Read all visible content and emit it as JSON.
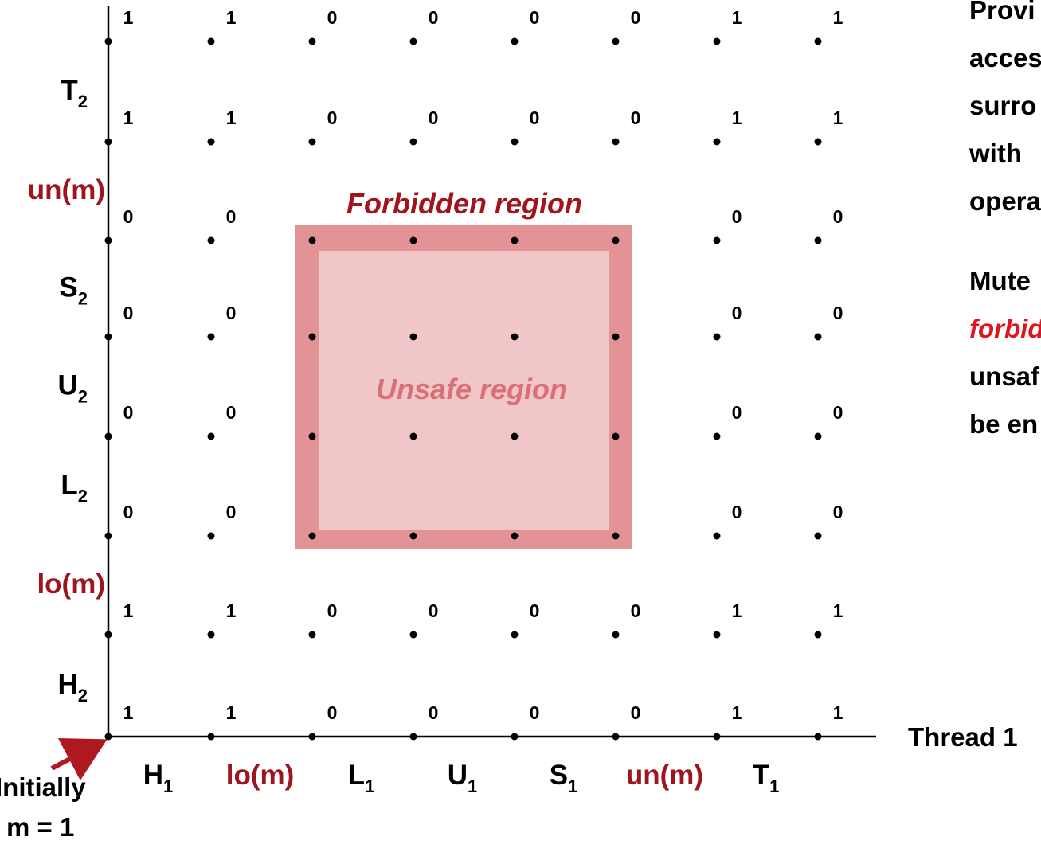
{
  "initial": {
    "line1": "Initially",
    "line2": "m = 1"
  },
  "x_axis": {
    "name": "Thread 1",
    "labels": [
      {
        "text": "H",
        "sub": "1",
        "red": false
      },
      {
        "text": "lo(m)",
        "sub": "",
        "red": true
      },
      {
        "text": "L",
        "sub": "1",
        "red": false
      },
      {
        "text": "U",
        "sub": "1",
        "red": false
      },
      {
        "text": "S",
        "sub": "1",
        "red": false
      },
      {
        "text": "un(m)",
        "sub": "",
        "red": true
      },
      {
        "text": "T",
        "sub": "1",
        "red": false
      }
    ]
  },
  "y_axis": {
    "labels": [
      {
        "text": "H",
        "sub": "2",
        "red": false
      },
      {
        "text": "lo(m)",
        "sub": "",
        "red": true
      },
      {
        "text": "L",
        "sub": "2",
        "red": false
      },
      {
        "text": "U",
        "sub": "2",
        "red": false
      },
      {
        "text": "S",
        "sub": "2",
        "red": false
      },
      {
        "text": "un(m)",
        "sub": "",
        "red": true
      },
      {
        "text": "T",
        "sub": "2",
        "red": false
      }
    ]
  },
  "regions": {
    "forbidden": "Forbidden region",
    "unsafe": "Unsafe region"
  },
  "grid_values": [
    [
      "1",
      "1",
      "0",
      "0",
      "0",
      "0",
      "1",
      "1"
    ],
    [
      "1",
      "1",
      "0",
      "0",
      "0",
      "0",
      "1",
      "1"
    ],
    [
      "0",
      "0",
      "",
      "",
      "",
      "",
      "0",
      "0"
    ],
    [
      "0",
      "0",
      "",
      "",
      "",
      "",
      "0",
      "0"
    ],
    [
      "0",
      "0",
      "",
      "",
      "",
      "",
      "0",
      "0"
    ],
    [
      "0",
      "0",
      "",
      "",
      "",
      "",
      "0",
      "0"
    ],
    [
      "1",
      "1",
      "0",
      "0",
      "0",
      "0",
      "1",
      "1"
    ],
    [
      "1",
      "1",
      "0",
      "0",
      "0",
      "0",
      "1",
      "1"
    ]
  ],
  "notes": [
    [
      "Provi",
      "acces",
      "surro",
      "with ",
      "opera"
    ],
    [
      "Mute",
      "forbid",
      "unsaf",
      "be en"
    ]
  ],
  "colors": {
    "red": "#a0141e",
    "forbidden_fill": "#e39395",
    "unsafe_fill": "#f0c6c8",
    "arrow": "#b01820"
  }
}
